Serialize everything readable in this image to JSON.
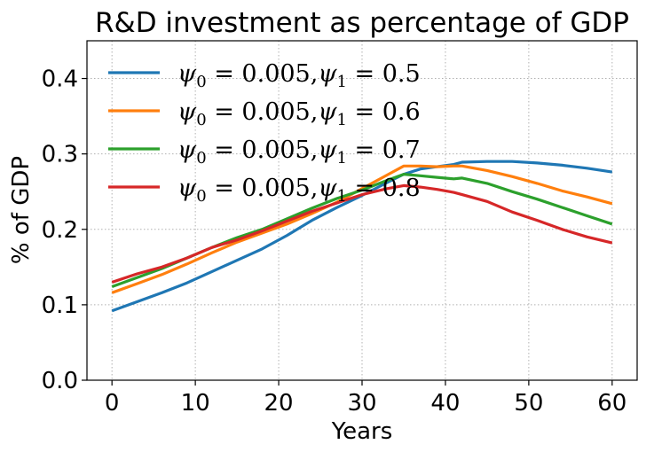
{
  "chart_data": {
    "type": "line",
    "title": "R&D investment as percentage of  GDP",
    "xlabel": "Years",
    "ylabel": "% of GDP",
    "xlim": [
      -3,
      63
    ],
    "ylim": [
      0,
      0.45
    ],
    "xticks": [
      0,
      10,
      20,
      30,
      40,
      50,
      60
    ],
    "yticks": [
      0.0,
      0.1,
      0.2,
      0.3,
      0.4
    ],
    "xtick_labels": [
      "0",
      "10",
      "20",
      "30",
      "40",
      "50",
      "60"
    ],
    "ytick_labels": [
      "0.0",
      "0.1",
      "0.2",
      "0.3",
      "0.4"
    ],
    "grid": true,
    "legend_position": "upper-left",
    "x": [
      0,
      3,
      6,
      9,
      12,
      15,
      18,
      21,
      24,
      27,
      30,
      33,
      35,
      37,
      39,
      41,
      42,
      45,
      48,
      51,
      54,
      57,
      60
    ],
    "series": [
      {
        "name": "ψ0 = 0.005, ψ1 = 0.5",
        "color": "#1f77b4",
        "values": [
          0.092,
          0.104,
          0.116,
          0.129,
          0.144,
          0.159,
          0.174,
          0.192,
          0.212,
          0.229,
          0.245,
          0.262,
          0.273,
          0.28,
          0.283,
          0.286,
          0.289,
          0.29,
          0.29,
          0.288,
          0.285,
          0.281,
          0.276
        ]
      },
      {
        "name": "ψ0 = 0.005, ψ1 = 0.6",
        "color": "#ff7f0e",
        "values": [
          0.116,
          0.128,
          0.14,
          0.154,
          0.169,
          0.183,
          0.195,
          0.207,
          0.221,
          0.236,
          0.254,
          0.272,
          0.284,
          0.284,
          0.283,
          0.284,
          0.284,
          0.278,
          0.27,
          0.261,
          0.251,
          0.243,
          0.234
        ]
      },
      {
        "name": "ψ0 = 0.005, ψ1 = 0.7",
        "color": "#2ca02c",
        "values": [
          0.124,
          0.136,
          0.148,
          0.162,
          0.176,
          0.189,
          0.2,
          0.214,
          0.228,
          0.241,
          0.252,
          0.265,
          0.273,
          0.271,
          0.269,
          0.267,
          0.268,
          0.261,
          0.25,
          0.24,
          0.229,
          0.218,
          0.207
        ]
      },
      {
        "name": "ψ0 = 0.005, ψ1 = 0.8",
        "color": "#d62728",
        "values": [
          0.13,
          0.141,
          0.15,
          0.162,
          0.176,
          0.186,
          0.198,
          0.211,
          0.224,
          0.235,
          0.246,
          0.254,
          0.258,
          0.256,
          0.253,
          0.249,
          0.246,
          0.237,
          0.223,
          0.212,
          0.2,
          0.19,
          0.182
        ]
      }
    ],
    "legend_labels": [
      {
        "psi0": "ψ",
        "psi0_sub": "0",
        "eq1": " = 0.005,",
        "psi1": "ψ",
        "psi1_sub": "1",
        "eq2": " = 0.5"
      },
      {
        "psi0": "ψ",
        "psi0_sub": "0",
        "eq1": " = 0.005,",
        "psi1": "ψ",
        "psi1_sub": "1",
        "eq2": " = 0.6"
      },
      {
        "psi0": "ψ",
        "psi0_sub": "0",
        "eq1": " = 0.005,",
        "psi1": "ψ",
        "psi1_sub": "1",
        "eq2": " = 0.7"
      },
      {
        "psi0": "ψ",
        "psi0_sub": "0",
        "eq1": " = 0.005,",
        "psi1": "ψ",
        "psi1_sub": "1",
        "eq2": " = 0.8"
      }
    ]
  }
}
